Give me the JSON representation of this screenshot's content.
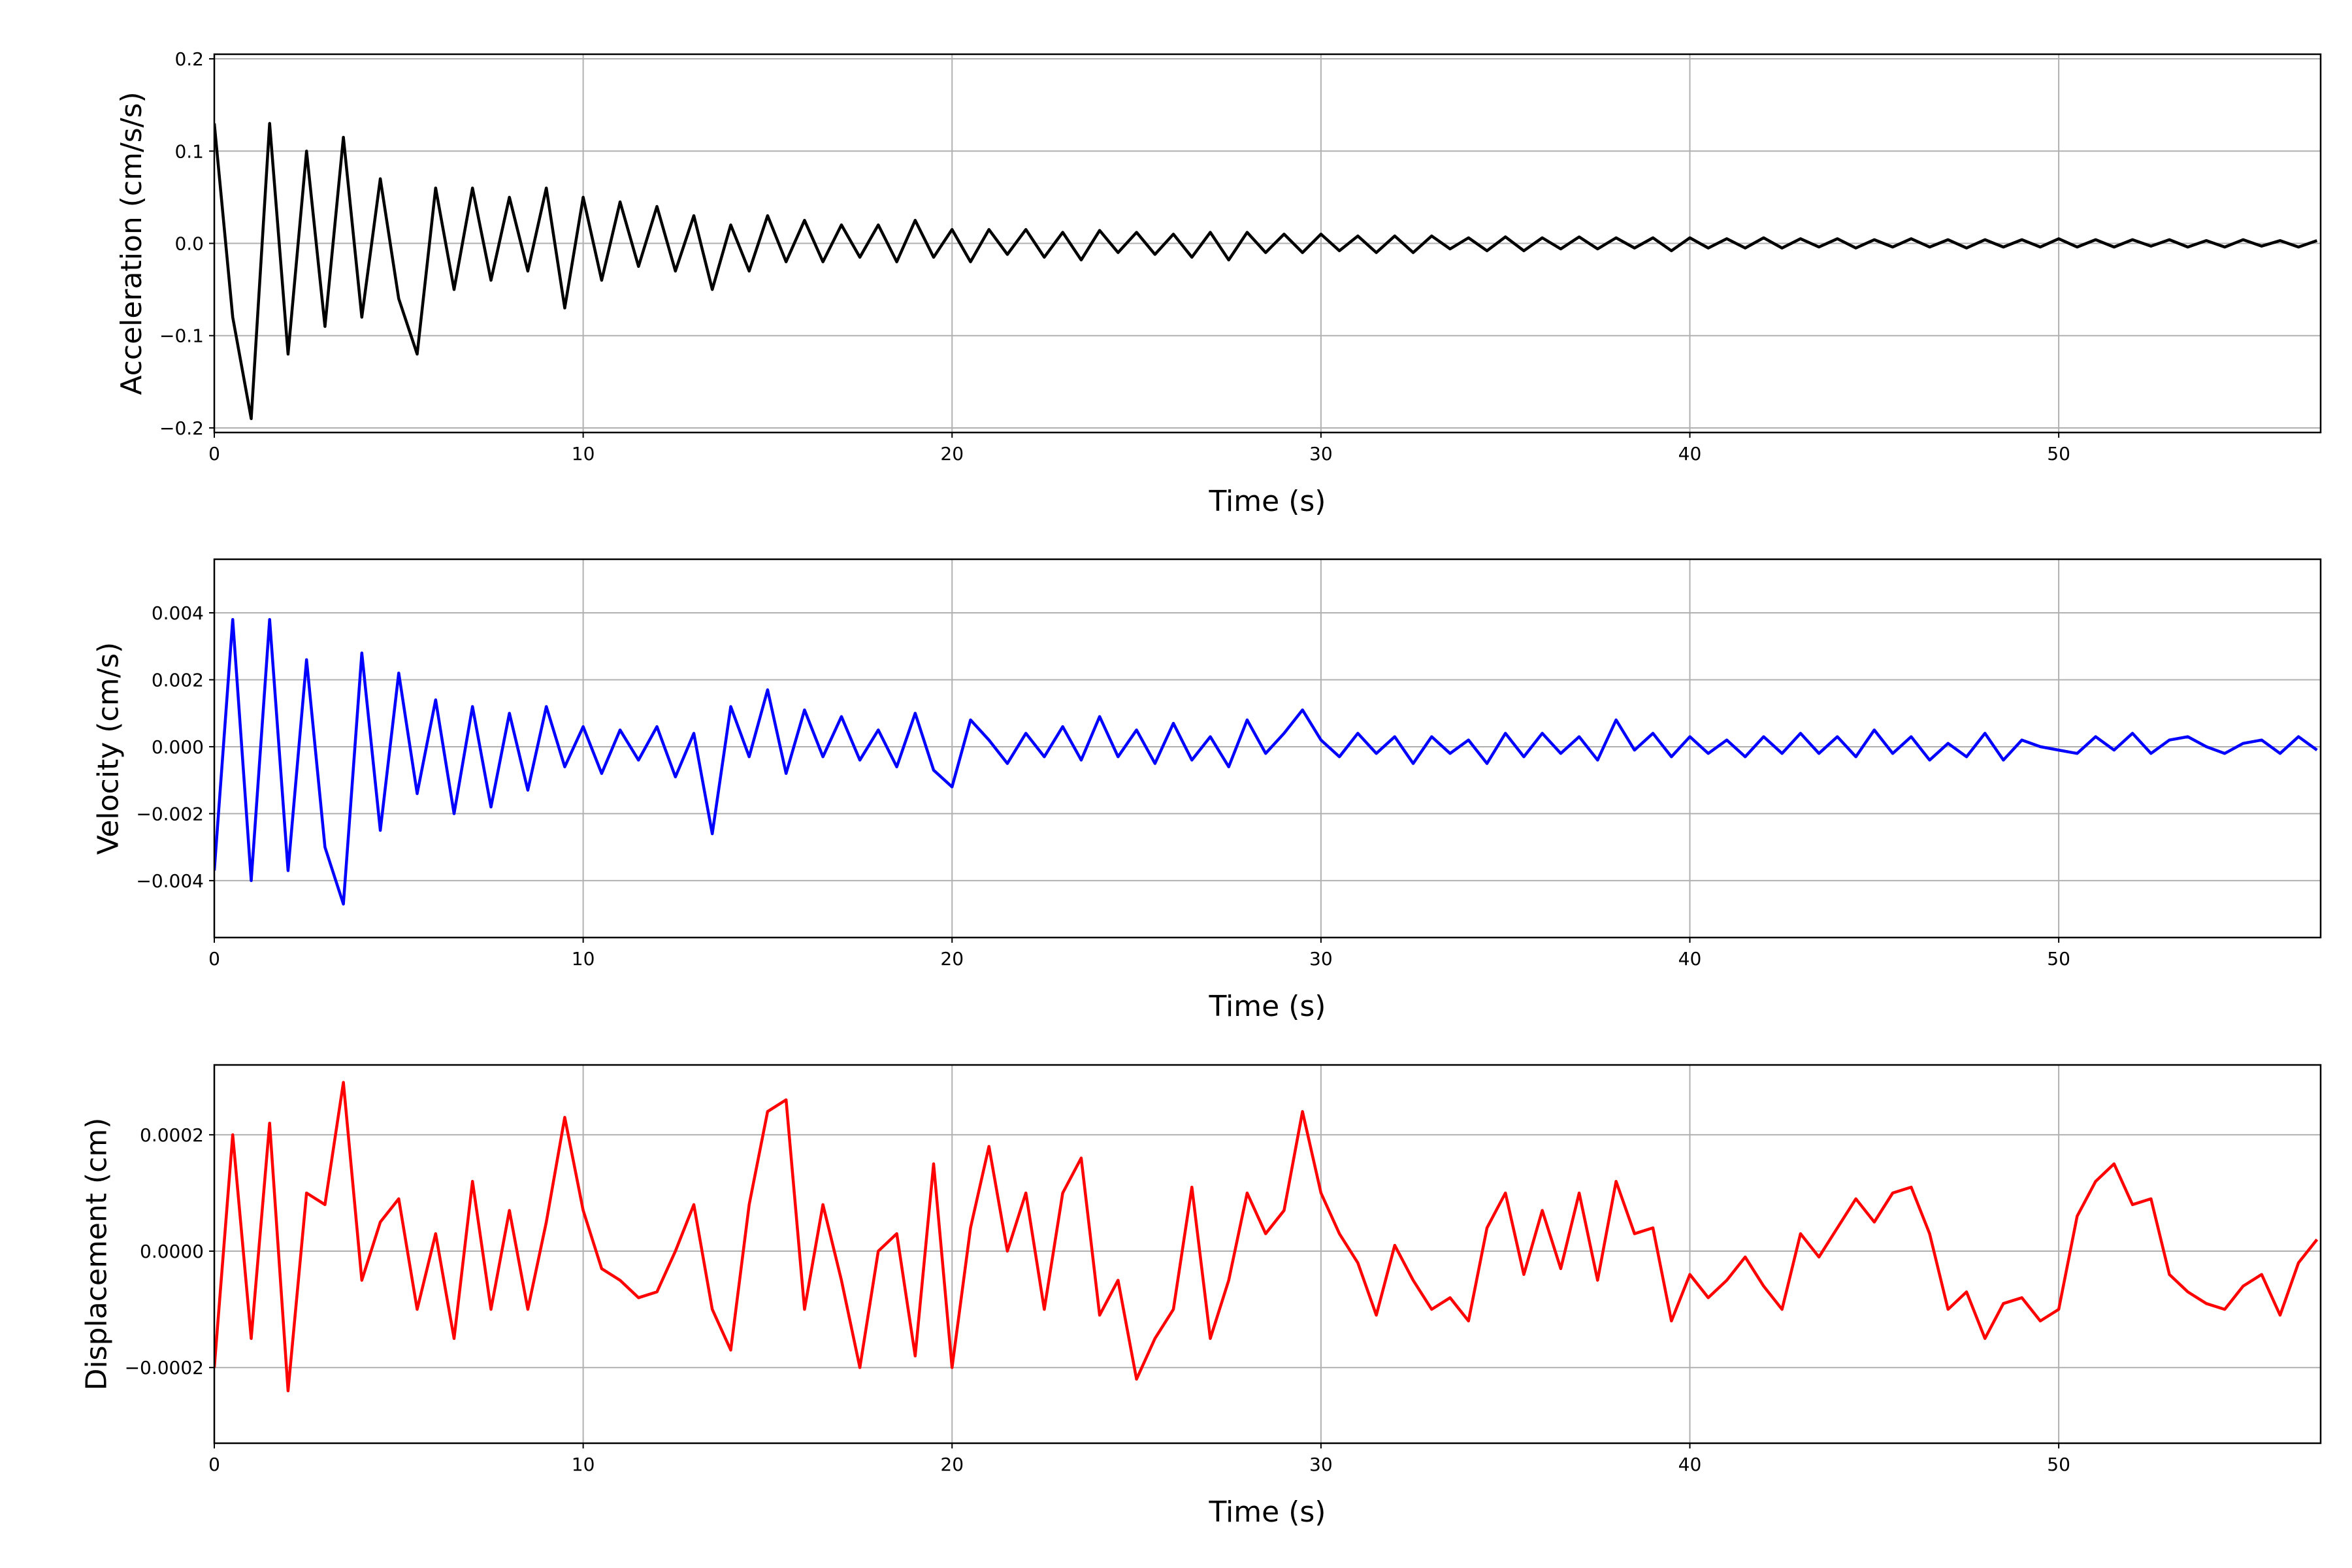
{
  "chart_data": [
    {
      "type": "line",
      "xlabel": "Time (s)",
      "ylabel": "Acceleration (cm/s/s)",
      "color": "#000000",
      "grid": true,
      "xlim": [
        0,
        57.1
      ],
      "ylim": [
        -0.205,
        0.205
      ],
      "xticks": [
        0,
        10,
        20,
        30,
        40,
        50
      ],
      "yticks": [
        {
          "value": -0.2,
          "label": "−0.2"
        },
        {
          "value": -0.1,
          "label": "−0.1"
        },
        {
          "value": 0,
          "label": "0.0"
        },
        0.1,
        0.2
      ],
      "x": [
        0,
        0.5,
        1,
        1.5,
        2,
        2.5,
        3,
        3.5,
        4,
        4.5,
        5,
        5.5,
        6,
        6.5,
        7,
        7.5,
        8,
        8.5,
        9,
        9.5,
        10,
        10.5,
        11,
        11.5,
        12,
        12.5,
        13,
        13.5,
        14,
        14.5,
        15,
        15.5,
        16,
        16.5,
        17,
        17.5,
        18,
        18.5,
        19,
        19.5,
        20,
        20.5,
        21,
        21.5,
        22,
        22.5,
        23,
        23.5,
        24,
        24.5,
        25,
        25.5,
        26,
        26.5,
        27,
        27.5,
        28,
        28.5,
        29,
        29.5,
        30,
        30.5,
        31,
        31.5,
        32,
        32.5,
        33,
        33.5,
        34,
        34.5,
        35,
        35.5,
        36,
        36.5,
        37,
        37.5,
        38,
        38.5,
        39,
        39.5,
        40,
        40.5,
        41,
        41.5,
        42,
        42.5,
        43,
        43.5,
        44,
        44.5,
        45,
        45.5,
        46,
        46.5,
        47,
        47.5,
        48,
        48.5,
        49,
        49.5,
        50,
        50.5,
        51,
        51.5,
        52,
        52.5,
        53,
        53.5,
        54,
        54.5,
        55,
        55.5,
        56,
        56.5,
        57
      ],
      "values": [
        0.13,
        -0.08,
        -0.19,
        0.13,
        -0.12,
        0.1,
        -0.09,
        0.115,
        -0.08,
        0.07,
        -0.06,
        -0.12,
        0.06,
        -0.05,
        0.06,
        -0.04,
        0.05,
        -0.03,
        0.06,
        -0.07,
        0.05,
        -0.04,
        0.045,
        -0.025,
        0.04,
        -0.03,
        0.03,
        -0.05,
        0.02,
        -0.03,
        0.03,
        -0.02,
        0.025,
        -0.02,
        0.02,
        -0.015,
        0.02,
        -0.02,
        0.025,
        -0.015,
        0.015,
        -0.02,
        0.015,
        -0.012,
        0.015,
        -0.015,
        0.012,
        -0.018,
        0.014,
        -0.01,
        0.012,
        -0.012,
        0.01,
        -0.015,
        0.012,
        -0.018,
        0.012,
        -0.01,
        0.01,
        -0.01,
        0.01,
        -0.008,
        0.008,
        -0.01,
        0.008,
        -0.01,
        0.008,
        -0.006,
        0.006,
        -0.008,
        0.007,
        -0.008,
        0.006,
        -0.006,
        0.007,
        -0.006,
        0.006,
        -0.005,
        0.006,
        -0.008,
        0.006,
        -0.005,
        0.005,
        -0.005,
        0.006,
        -0.005,
        0.005,
        -0.004,
        0.005,
        -0.005,
        0.004,
        -0.004,
        0.005,
        -0.004,
        0.004,
        -0.005,
        0.004,
        -0.004,
        0.004,
        -0.004,
        0.005,
        -0.004,
        0.004,
        -0.004,
        0.004,
        -0.003,
        0.004,
        -0.004,
        0.003,
        -0.004,
        0.004,
        -0.003,
        0.003,
        -0.004,
        0.003
      ]
    },
    {
      "type": "line",
      "xlabel": "Time (s)",
      "ylabel": "Velocity (cm/s)",
      "color": "#0000ff",
      "grid": true,
      "xlim": [
        0,
        57.1
      ],
      "ylim": [
        -0.0057,
        0.0056
      ],
      "xticks": [
        0,
        10,
        20,
        30,
        40,
        50
      ],
      "yticks": [
        {
          "value": -0.004,
          "label": "−0.004"
        },
        {
          "value": -0.002,
          "label": "−0.002"
        },
        {
          "value": 0,
          "label": "0.000"
        },
        0.002,
        0.004
      ],
      "x": [
        0,
        0.5,
        1,
        1.5,
        2,
        2.5,
        3,
        3.5,
        4,
        4.5,
        5,
        5.5,
        6,
        6.5,
        7,
        7.5,
        8,
        8.5,
        9,
        9.5,
        10,
        10.5,
        11,
        11.5,
        12,
        12.5,
        13,
        13.5,
        14,
        14.5,
        15,
        15.5,
        16,
        16.5,
        17,
        17.5,
        18,
        18.5,
        19,
        19.5,
        20,
        20.5,
        21,
        21.5,
        22,
        22.5,
        23,
        23.5,
        24,
        24.5,
        25,
        25.5,
        26,
        26.5,
        27,
        27.5,
        28,
        28.5,
        29,
        29.5,
        30,
        30.5,
        31,
        31.5,
        32,
        32.5,
        33,
        33.5,
        34,
        34.5,
        35,
        35.5,
        36,
        36.5,
        37,
        37.5,
        38,
        38.5,
        39,
        39.5,
        40,
        40.5,
        41,
        41.5,
        42,
        42.5,
        43,
        43.5,
        44,
        44.5,
        45,
        45.5,
        46,
        46.5,
        47,
        47.5,
        48,
        48.5,
        49,
        49.5,
        50,
        50.5,
        51,
        51.5,
        52,
        52.5,
        53,
        53.5,
        54,
        54.5,
        55,
        55.5,
        56,
        56.5,
        57
      ],
      "values": [
        -0.0037,
        0.0038,
        -0.004,
        0.0038,
        -0.0037,
        0.0026,
        -0.003,
        -0.0047,
        0.0028,
        -0.0025,
        0.0022,
        -0.0014,
        0.0014,
        -0.002,
        0.0012,
        -0.0018,
        0.001,
        -0.0013,
        0.0012,
        -0.0006,
        0.0006,
        -0.0008,
        0.0005,
        -0.0004,
        0.0006,
        -0.0009,
        0.0004,
        -0.0026,
        0.0012,
        -0.0003,
        0.0017,
        -0.0008,
        0.0011,
        -0.0003,
        0.0009,
        -0.0004,
        0.0005,
        -0.0006,
        0.001,
        -0.0007,
        -0.0012,
        0.0008,
        0.0002,
        -0.0005,
        0.0004,
        -0.0003,
        0.0006,
        -0.0004,
        0.0009,
        -0.0003,
        0.0005,
        -0.0005,
        0.0007,
        -0.0004,
        0.0003,
        -0.0006,
        0.0008,
        -0.0002,
        0.0004,
        0.0011,
        0.0002,
        -0.0003,
        0.0004,
        -0.0002,
        0.0003,
        -0.0005,
        0.0003,
        -0.0002,
        0.0002,
        -0.0005,
        0.0004,
        -0.0003,
        0.0004,
        -0.0002,
        0.0003,
        -0.0004,
        0.0008,
        -0.0001,
        0.0004,
        -0.0003,
        0.0003,
        -0.0002,
        0.0002,
        -0.0003,
        0.0003,
        -0.0002,
        0.0004,
        -0.0002,
        0.0003,
        -0.0003,
        0.0005,
        -0.0002,
        0.0003,
        -0.0004,
        0.0001,
        -0.0003,
        0.0004,
        -0.0004,
        0.0002,
        0,
        -0.0001,
        -0.0002,
        0.0003,
        -0.0001,
        0.0004,
        -0.0002,
        0.0002,
        0.0003,
        0,
        -0.0002,
        0.0001,
        0.0002,
        -0.0002,
        0.0003,
        -0.0001
      ]
    },
    {
      "type": "line",
      "xlabel": "Time (s)",
      "ylabel": "Displacement (cm)",
      "color": "#ff0000",
      "grid": true,
      "xlim": [
        0,
        57.1
      ],
      "ylim": [
        -0.00033,
        0.00032
      ],
      "xticks": [
        0,
        10,
        20,
        30,
        40,
        50
      ],
      "yticks": [
        {
          "value": -0.0002,
          "label": "−0.0002"
        },
        {
          "value": 0,
          "label": "0.0000"
        },
        0.0002
      ],
      "x": [
        0,
        0.5,
        1,
        1.5,
        2,
        2.5,
        3,
        3.5,
        4,
        4.5,
        5,
        5.5,
        6,
        6.5,
        7,
        7.5,
        8,
        8.5,
        9,
        9.5,
        10,
        10.5,
        11,
        11.5,
        12,
        12.5,
        13,
        13.5,
        14,
        14.5,
        15,
        15.5,
        16,
        16.5,
        17,
        17.5,
        18,
        18.5,
        19,
        19.5,
        20,
        20.5,
        21,
        21.5,
        22,
        22.5,
        23,
        23.5,
        24,
        24.5,
        25,
        25.5,
        26,
        26.5,
        27,
        27.5,
        28,
        28.5,
        29,
        29.5,
        30,
        30.5,
        31,
        31.5,
        32,
        32.5,
        33,
        33.5,
        34,
        34.5,
        35,
        35.5,
        36,
        36.5,
        37,
        37.5,
        38,
        38.5,
        39,
        39.5,
        40,
        40.5,
        41,
        41.5,
        42,
        42.5,
        43,
        43.5,
        44,
        44.5,
        45,
        45.5,
        46,
        46.5,
        47,
        47.5,
        48,
        48.5,
        49,
        49.5,
        50,
        50.5,
        51,
        51.5,
        52,
        52.5,
        53,
        53.5,
        54,
        54.5,
        55,
        55.5,
        56,
        56.5,
        57
      ],
      "values": [
        -0.0002,
        0.0002,
        -0.00015,
        0.00022,
        -0.00024,
        0.0001,
        8e-05,
        0.00029,
        -5e-05,
        5e-05,
        9e-05,
        -0.0001,
        3e-05,
        -0.00015,
        0.00012,
        -0.0001,
        7e-05,
        -0.0001,
        5e-05,
        0.00023,
        7e-05,
        -3e-05,
        -5e-05,
        -8e-05,
        -7e-05,
        0.0,
        8e-05,
        -0.0001,
        -0.00017,
        8e-05,
        0.00024,
        0.00026,
        -0.0001,
        8e-05,
        -5e-05,
        -0.0002,
        0.0,
        3e-05,
        -0.00018,
        0.00015,
        -0.0002,
        4e-05,
        0.00018,
        0.0,
        0.0001,
        -0.0001,
        0.0001,
        0.00016,
        -0.00011,
        -5e-05,
        -0.00022,
        -0.00015,
        -0.0001,
        0.00011,
        -0.00015,
        -5e-05,
        0.0001,
        3e-05,
        7e-05,
        0.00024,
        0.0001,
        3e-05,
        -2e-05,
        -0.00011,
        1e-05,
        -5e-05,
        -0.0001,
        -8e-05,
        -0.00012,
        4e-05,
        0.0001,
        -4e-05,
        7e-05,
        -3e-05,
        0.0001,
        -5e-05,
        0.00012,
        3e-05,
        4e-05,
        -0.00012,
        -4e-05,
        -8e-05,
        -5e-05,
        -1e-05,
        -6e-05,
        -0.0001,
        3e-05,
        -1e-05,
        4e-05,
        9e-05,
        5e-05,
        0.0001,
        0.00011,
        3e-05,
        -0.0001,
        -7e-05,
        -0.00015,
        -9e-05,
        -8e-05,
        -0.00012,
        -0.0001,
        6e-05,
        0.00012,
        0.00015,
        8e-05,
        9e-05,
        -4e-05,
        -7e-05,
        -9e-05,
        -0.0001,
        -6e-05,
        -4e-05,
        -0.00011,
        -2e-05,
        2e-05
      ]
    }
  ]
}
